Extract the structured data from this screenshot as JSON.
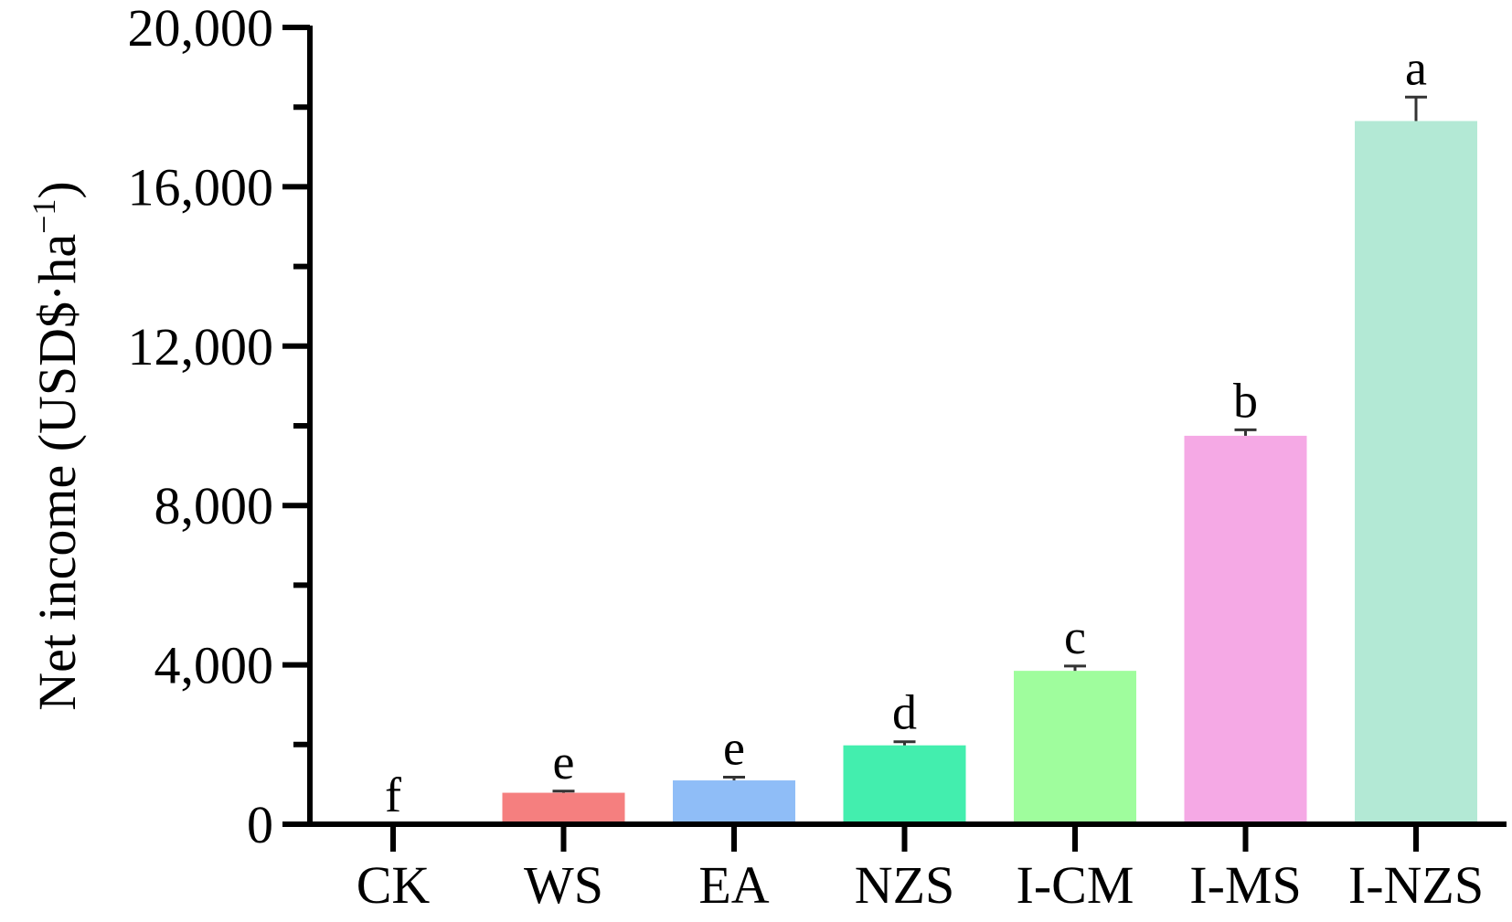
{
  "chart_data": {
    "type": "bar",
    "title": "",
    "xlabel": "",
    "ylabel": {
      "main": "Net income (USD$·ha",
      "superscript": "−1",
      "close": ")"
    },
    "ylim": [
      0,
      20000
    ],
    "yticks": [
      0,
      4000,
      8000,
      12000,
      16000,
      20000
    ],
    "ytick_labels": [
      "0",
      "4,000",
      "8,000",
      "12,000",
      "16,000",
      "20,000"
    ],
    "grid": false,
    "categories": [
      "CK",
      "WS",
      "EA",
      "NZS",
      "I-CM",
      "I-MS",
      "I-NZS"
    ],
    "values": [
      0,
      790,
      1100,
      1980,
      3850,
      9750,
      17650
    ],
    "errors": [
      0,
      40,
      80,
      90,
      120,
      150,
      600
    ],
    "significance": [
      "f",
      "e",
      "e",
      "d",
      "c",
      "b",
      "a"
    ],
    "colors": [
      "#ffffff",
      "#f57f7f",
      "#8fbdf7",
      "#43eeae",
      "#9ffd9d",
      "#f5a9e5",
      "#b3e9d5"
    ]
  }
}
